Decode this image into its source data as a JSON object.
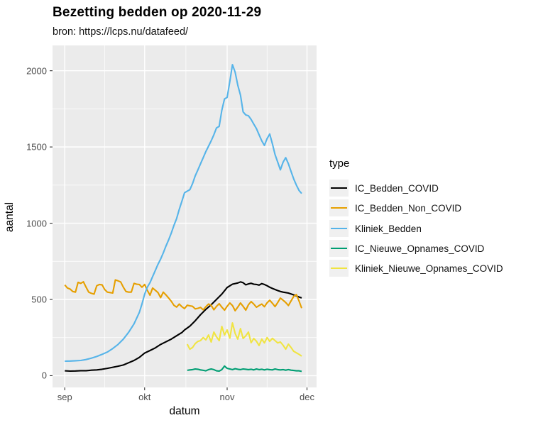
{
  "colors": {
    "panel_background": "#EBEBEB",
    "gridline": "#FFFFFF",
    "tick_mark": "#333333",
    "tick_label": "#4D4D4D",
    "legend_key_background": "#F0F0F0"
  },
  "chart_data": {
    "type": "line",
    "title": "Bezetting bedden op 2020-11-29",
    "subtitle": "bron: https://lcps.nu/datafeed/",
    "xlabel": "datum",
    "ylabel": "aantal",
    "legend_title": "type",
    "legend_position": "right",
    "grid": "major-and-minor",
    "x_unit": "days since 2020-09-01",
    "xlim_days": [
      0,
      91
    ],
    "ylim": [
      0,
      2040
    ],
    "yticks": [
      {
        "label": "0",
        "value": 0
      },
      {
        "label": "500",
        "value": 500
      },
      {
        "label": "1000",
        "value": 1000
      },
      {
        "label": "1500",
        "value": 1500
      },
      {
        "label": "2000",
        "value": 2000
      }
    ],
    "xticks": [
      {
        "label": "sep",
        "day": 0
      },
      {
        "label": "okt",
        "day": 30
      },
      {
        "label": "nov",
        "day": 61
      },
      {
        "label": "dec",
        "day": 91
      }
    ],
    "minor_yticks": [
      250,
      750,
      1250,
      1750
    ],
    "minor_xtick_days": [
      15,
      45.5,
      76
    ],
    "series": [
      {
        "name": "IC_Bedden_COVID",
        "color": "#000000",
        "points": [
          [
            0,
            32
          ],
          [
            2,
            30
          ],
          [
            4,
            31
          ],
          [
            6,
            33
          ],
          [
            8,
            33
          ],
          [
            10,
            36
          ],
          [
            12,
            38
          ],
          [
            14,
            42
          ],
          [
            16,
            48
          ],
          [
            18,
            55
          ],
          [
            20,
            62
          ],
          [
            22,
            70
          ],
          [
            24,
            85
          ],
          [
            26,
            100
          ],
          [
            28,
            120
          ],
          [
            30,
            148
          ],
          [
            32,
            165
          ],
          [
            34,
            182
          ],
          [
            36,
            205
          ],
          [
            38,
            222
          ],
          [
            40,
            240
          ],
          [
            42,
            262
          ],
          [
            44,
            283
          ],
          [
            45,
            300
          ],
          [
            47,
            325
          ],
          [
            49,
            360
          ],
          [
            51,
            400
          ],
          [
            53,
            435
          ],
          [
            55,
            465
          ],
          [
            57,
            500
          ],
          [
            59,
            535
          ],
          [
            61,
            578
          ],
          [
            63,
            600
          ],
          [
            65,
            608
          ],
          [
            66,
            615
          ],
          [
            67,
            610
          ],
          [
            68,
            596
          ],
          [
            69,
            602
          ],
          [
            70,
            606
          ],
          [
            71,
            600
          ],
          [
            72,
            598
          ],
          [
            73,
            594
          ],
          [
            74,
            604
          ],
          [
            75,
            598
          ],
          [
            76,
            590
          ],
          [
            77,
            580
          ],
          [
            78,
            572
          ],
          [
            79,
            565
          ],
          [
            80,
            558
          ],
          [
            81,
            552
          ],
          [
            82,
            548
          ],
          [
            83,
            545
          ],
          [
            84,
            542
          ],
          [
            85,
            536
          ],
          [
            86,
            530
          ],
          [
            87,
            524
          ],
          [
            88,
            516
          ],
          [
            89,
            510
          ]
        ]
      },
      {
        "name": "IC_Bedden_Non_COVID",
        "color": "#E69F00",
        "points": [
          [
            0,
            595
          ],
          [
            1,
            575
          ],
          [
            2,
            568
          ],
          [
            3,
            552
          ],
          [
            4,
            548
          ],
          [
            5,
            612
          ],
          [
            6,
            605
          ],
          [
            7,
            616
          ],
          [
            8,
            580
          ],
          [
            9,
            548
          ],
          [
            10,
            540
          ],
          [
            11,
            535
          ],
          [
            12,
            590
          ],
          [
            13,
            598
          ],
          [
            14,
            596
          ],
          [
            15,
            565
          ],
          [
            16,
            548
          ],
          [
            17,
            545
          ],
          [
            18,
            542
          ],
          [
            19,
            628
          ],
          [
            20,
            622
          ],
          [
            21,
            615
          ],
          [
            22,
            580
          ],
          [
            23,
            552
          ],
          [
            24,
            548
          ],
          [
            25,
            548
          ],
          [
            26,
            605
          ],
          [
            27,
            600
          ],
          [
            28,
            598
          ],
          [
            29,
            580
          ],
          [
            30,
            598
          ],
          [
            31,
            560
          ],
          [
            32,
            528
          ],
          [
            33,
            575
          ],
          [
            34,
            560
          ],
          [
            35,
            545
          ],
          [
            36,
            512
          ],
          [
            37,
            548
          ],
          [
            38,
            530
          ],
          [
            39,
            510
          ],
          [
            40,
            488
          ],
          [
            41,
            462
          ],
          [
            42,
            450
          ],
          [
            43,
            470
          ],
          [
            44,
            452
          ],
          [
            45,
            440
          ],
          [
            46,
            462
          ],
          [
            47,
            458
          ],
          [
            48,
            455
          ],
          [
            49,
            438
          ],
          [
            50,
            442
          ],
          [
            51,
            448
          ],
          [
            52,
            432
          ],
          [
            53,
            452
          ],
          [
            54,
            470
          ],
          [
            55,
            462
          ],
          [
            56,
            432
          ],
          [
            57,
            455
          ],
          [
            58,
            472
          ],
          [
            59,
            450
          ],
          [
            60,
            430
          ],
          [
            61,
            455
          ],
          [
            62,
            477
          ],
          [
            63,
            460
          ],
          [
            64,
            426
          ],
          [
            65,
            450
          ],
          [
            66,
            477
          ],
          [
            67,
            455
          ],
          [
            68,
            430
          ],
          [
            69,
            465
          ],
          [
            70,
            486
          ],
          [
            71,
            470
          ],
          [
            72,
            449
          ],
          [
            73,
            460
          ],
          [
            74,
            470
          ],
          [
            75,
            452
          ],
          [
            76,
            478
          ],
          [
            77,
            495
          ],
          [
            78,
            475
          ],
          [
            79,
            453
          ],
          [
            80,
            480
          ],
          [
            81,
            509
          ],
          [
            82,
            495
          ],
          [
            83,
            480
          ],
          [
            84,
            460
          ],
          [
            85,
            490
          ],
          [
            86,
            520
          ],
          [
            87,
            532
          ],
          [
            88,
            490
          ],
          [
            89,
            443
          ]
        ]
      },
      {
        "name": "Kliniek_Bedden",
        "color": "#56B4E9",
        "points": [
          [
            0,
            95
          ],
          [
            2,
            96
          ],
          [
            4,
            98
          ],
          [
            6,
            100
          ],
          [
            8,
            106
          ],
          [
            10,
            115
          ],
          [
            12,
            126
          ],
          [
            14,
            140
          ],
          [
            16,
            155
          ],
          [
            18,
            178
          ],
          [
            20,
            205
          ],
          [
            22,
            240
          ],
          [
            24,
            285
          ],
          [
            26,
            340
          ],
          [
            28,
            415
          ],
          [
            29,
            470
          ],
          [
            30,
            535
          ],
          [
            31,
            580
          ],
          [
            32,
            610
          ],
          [
            33,
            650
          ],
          [
            34,
            690
          ],
          [
            35,
            730
          ],
          [
            36,
            765
          ],
          [
            37,
            805
          ],
          [
            38,
            850
          ],
          [
            39,
            890
          ],
          [
            40,
            935
          ],
          [
            41,
            985
          ],
          [
            42,
            1030
          ],
          [
            43,
            1090
          ],
          [
            44,
            1145
          ],
          [
            45,
            1200
          ],
          [
            46,
            1210
          ],
          [
            47,
            1220
          ],
          [
            48,
            1260
          ],
          [
            49,
            1310
          ],
          [
            50,
            1350
          ],
          [
            51,
            1390
          ],
          [
            52,
            1430
          ],
          [
            53,
            1470
          ],
          [
            54,
            1505
          ],
          [
            55,
            1540
          ],
          [
            56,
            1580
          ],
          [
            57,
            1625
          ],
          [
            58,
            1635
          ],
          [
            59,
            1740
          ],
          [
            60,
            1815
          ],
          [
            61,
            1825
          ],
          [
            62,
            1930
          ],
          [
            63,
            2040
          ],
          [
            64,
            1990
          ],
          [
            65,
            1905
          ],
          [
            66,
            1840
          ],
          [
            67,
            1730
          ],
          [
            68,
            1710
          ],
          [
            69,
            1705
          ],
          [
            70,
            1680
          ],
          [
            71,
            1650
          ],
          [
            72,
            1620
          ],
          [
            73,
            1580
          ],
          [
            74,
            1540
          ],
          [
            75,
            1510
          ],
          [
            76,
            1555
          ],
          [
            77,
            1585
          ],
          [
            78,
            1520
          ],
          [
            79,
            1450
          ],
          [
            80,
            1400
          ],
          [
            81,
            1350
          ],
          [
            82,
            1400
          ],
          [
            83,
            1430
          ],
          [
            84,
            1390
          ],
          [
            85,
            1340
          ],
          [
            86,
            1290
          ],
          [
            87,
            1250
          ],
          [
            88,
            1215
          ],
          [
            89,
            1195
          ]
        ]
      },
      {
        "name": "IC_Nieuwe_Opnames_COVID",
        "color": "#009E73",
        "points": [
          [
            46,
            35
          ],
          [
            47,
            38
          ],
          [
            48,
            40
          ],
          [
            49,
            44
          ],
          [
            50,
            42
          ],
          [
            51,
            38
          ],
          [
            52,
            35
          ],
          [
            53,
            32
          ],
          [
            54,
            40
          ],
          [
            55,
            44
          ],
          [
            56,
            40
          ],
          [
            57,
            32
          ],
          [
            58,
            30
          ],
          [
            59,
            40
          ],
          [
            60,
            63
          ],
          [
            61,
            48
          ],
          [
            62,
            44
          ],
          [
            63,
            40
          ],
          [
            64,
            46
          ],
          [
            65,
            42
          ],
          [
            66,
            40
          ],
          [
            67,
            44
          ],
          [
            68,
            42
          ],
          [
            69,
            40
          ],
          [
            70,
            42
          ],
          [
            71,
            38
          ],
          [
            72,
            44
          ],
          [
            73,
            40
          ],
          [
            74,
            42
          ],
          [
            75,
            38
          ],
          [
            76,
            42
          ],
          [
            77,
            40
          ],
          [
            78,
            38
          ],
          [
            79,
            44
          ],
          [
            80,
            40
          ],
          [
            81,
            38
          ],
          [
            82,
            40
          ],
          [
            83,
            36
          ],
          [
            84,
            40
          ],
          [
            85,
            36
          ],
          [
            86,
            34
          ],
          [
            87,
            32
          ],
          [
            88,
            32
          ],
          [
            89,
            28
          ]
        ]
      },
      {
        "name": "Kliniek_Nieuwe_Opnames_COVID",
        "color": "#F0E442",
        "points": [
          [
            46,
            207
          ],
          [
            47,
            174
          ],
          [
            48,
            185
          ],
          [
            49,
            210
          ],
          [
            50,
            225
          ],
          [
            51,
            230
          ],
          [
            52,
            250
          ],
          [
            53,
            235
          ],
          [
            54,
            267
          ],
          [
            55,
            221
          ],
          [
            56,
            286
          ],
          [
            57,
            255
          ],
          [
            58,
            230
          ],
          [
            59,
            323
          ],
          [
            60,
            267
          ],
          [
            61,
            300
          ],
          [
            62,
            246
          ],
          [
            63,
            346
          ],
          [
            64,
            277
          ],
          [
            65,
            240
          ],
          [
            66,
            309
          ],
          [
            67,
            244
          ],
          [
            68,
            262
          ],
          [
            69,
            286
          ],
          [
            70,
            216
          ],
          [
            71,
            244
          ],
          [
            72,
            226
          ],
          [
            73,
            198
          ],
          [
            74,
            240
          ],
          [
            75,
            215
          ],
          [
            76,
            250
          ],
          [
            77,
            225
          ],
          [
            78,
            245
          ],
          [
            79,
            230
          ],
          [
            80,
            215
          ],
          [
            81,
            221
          ],
          [
            82,
            200
          ],
          [
            83,
            174
          ],
          [
            84,
            207
          ],
          [
            85,
            185
          ],
          [
            86,
            160
          ],
          [
            87,
            150
          ],
          [
            88,
            140
          ],
          [
            89,
            128
          ]
        ]
      }
    ]
  }
}
